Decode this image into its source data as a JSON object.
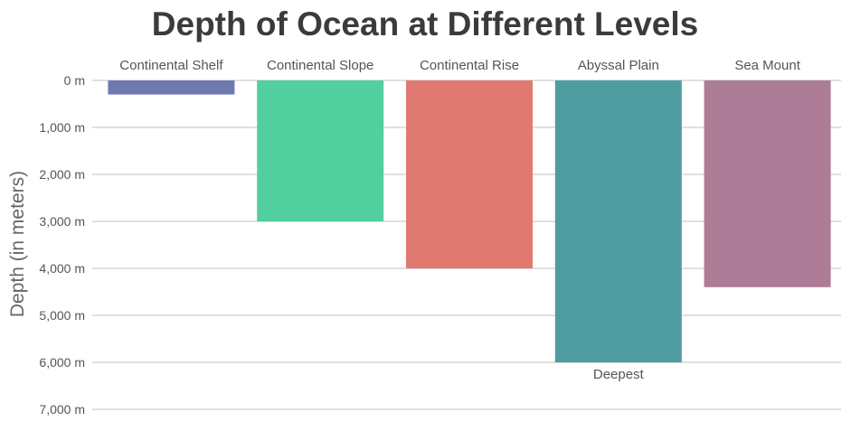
{
  "chart_data": {
    "type": "bar",
    "orientation": "vertical-downward",
    "title": "Depth of Ocean at Different Levels",
    "ylabel": "Depth (in meters)",
    "xlabel": "",
    "category_axis_position": "top",
    "ylim": [
      0,
      7000
    ],
    "y_inverted": true,
    "grid": true,
    "yticks": [
      0,
      1000,
      2000,
      3000,
      4000,
      5000,
      6000,
      7000
    ],
    "ytick_labels": [
      "0 m",
      "1,000 m",
      "2,000 m",
      "3,000 m",
      "4,000 m",
      "5,000 m",
      "6,000 m",
      "7,000 m"
    ],
    "categories": [
      "Continental Shelf",
      "Continental Slope",
      "Continental Rise",
      "Abyssal Plain",
      "Sea Mount"
    ],
    "values": [
      300,
      3000,
      4000,
      6000,
      4400
    ],
    "colors": [
      "#6e79b0",
      "#52cf9e",
      "#e07a70",
      "#4e9ca0",
      "#ad7c97"
    ],
    "annotations": [
      {
        "category": "Abyssal Plain",
        "text": "Deepest"
      }
    ]
  }
}
